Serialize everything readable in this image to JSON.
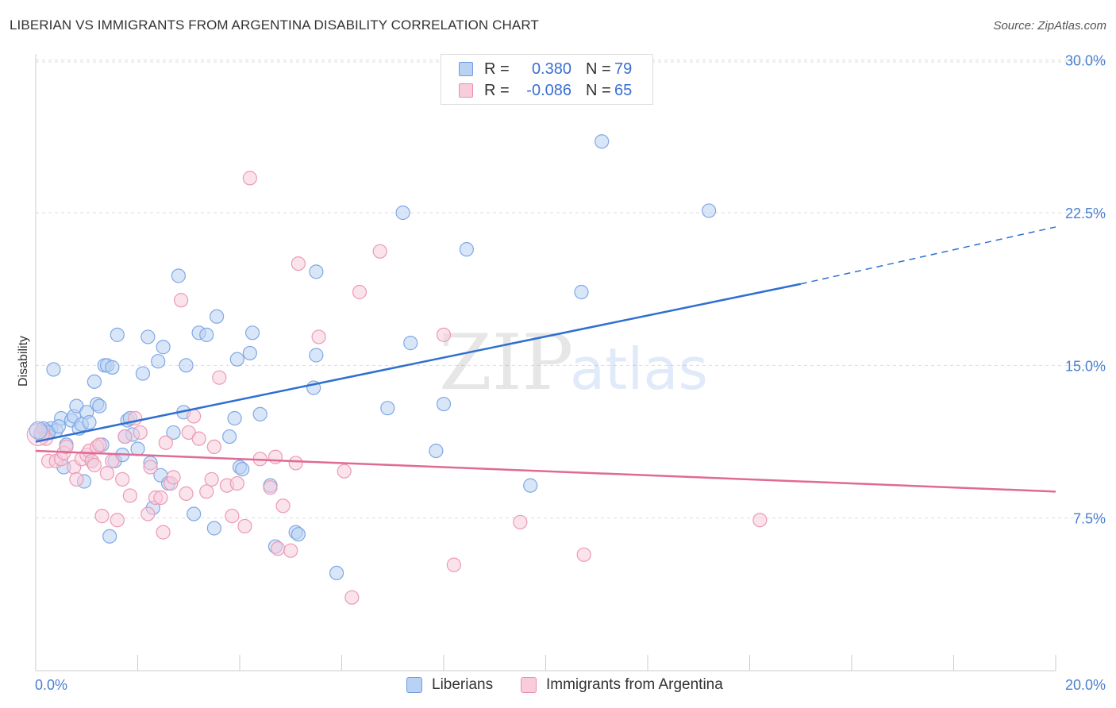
{
  "header": {
    "title": "LIBERIAN VS IMMIGRANTS FROM ARGENTINA DISABILITY CORRELATION CHART",
    "source": "Source: ZipAtlas.com"
  },
  "watermark": {
    "zip": "ZIP",
    "atlas": "atlas"
  },
  "legend": {
    "rows": [
      {
        "r_label": "R =",
        "r_value": "0.380",
        "n_label": "N =",
        "n_value": "79",
        "color": "#a9c8f0",
        "border": "#6f9de0"
      },
      {
        "r_label": "R =",
        "r_value": "-0.086",
        "n_label": "N =",
        "n_value": "65",
        "color": "#f6c3d3",
        "border": "#e890ad"
      }
    ]
  },
  "bottom_legend": {
    "items": [
      "Liberians",
      "Immigrants from Argentina"
    ]
  },
  "chart_data": {
    "type": "scatter",
    "title": "LIBERIAN VS IMMIGRANTS FROM ARGENTINA DISABILITY CORRELATION CHART",
    "xlabel": "",
    "ylabel": "Disability",
    "xlim": [
      0,
      20
    ],
    "ylim": [
      0,
      31
    ],
    "x_tick_labels": [
      "0.0%",
      "20.0%"
    ],
    "y_ticks": [
      7.5,
      15.0,
      22.5,
      30.0
    ],
    "y_tick_labels": [
      "7.5%",
      "15.0%",
      "22.5%",
      "30.0%"
    ],
    "grid": true,
    "legend_position": "top-center",
    "series": [
      {
        "name": "Liberians",
        "color": "#7fa8e6",
        "fill": "#b9d1f3",
        "trend": {
          "x0": 0,
          "y0": 11.25,
          "x1": 15.0,
          "y1": 19.0,
          "dash_to_x": 20.0,
          "dash_to_y": 21.8,
          "color": "#2f6fd0"
        },
        "points": [
          [
            0.1,
            11.6
          ],
          [
            0.2,
            11.8
          ],
          [
            0.3,
            11.9
          ],
          [
            0.4,
            11.8
          ],
          [
            0.35,
            14.8
          ],
          [
            0.5,
            12.4
          ],
          [
            0.55,
            10.0
          ],
          [
            0.6,
            11.1
          ],
          [
            0.7,
            12.3
          ],
          [
            0.75,
            12.5
          ],
          [
            0.8,
            13.0
          ],
          [
            0.85,
            11.9
          ],
          [
            0.9,
            12.1
          ],
          [
            0.95,
            9.3
          ],
          [
            1.0,
            12.7
          ],
          [
            1.05,
            12.2
          ],
          [
            1.1,
            10.3
          ],
          [
            1.15,
            14.2
          ],
          [
            1.2,
            13.1
          ],
          [
            1.25,
            13.0
          ],
          [
            1.3,
            11.1
          ],
          [
            1.35,
            15.0
          ],
          [
            1.4,
            15.0
          ],
          [
            1.45,
            6.6
          ],
          [
            1.5,
            14.9
          ],
          [
            1.55,
            10.3
          ],
          [
            1.6,
            16.5
          ],
          [
            1.7,
            10.6
          ],
          [
            1.75,
            11.5
          ],
          [
            1.8,
            12.3
          ],
          [
            1.85,
            12.4
          ],
          [
            1.9,
            11.6
          ],
          [
            2.0,
            10.9
          ],
          [
            2.1,
            14.6
          ],
          [
            2.2,
            16.4
          ],
          [
            2.25,
            10.2
          ],
          [
            2.3,
            8.0
          ],
          [
            2.4,
            15.2
          ],
          [
            2.45,
            9.6
          ],
          [
            2.5,
            15.9
          ],
          [
            2.6,
            9.2
          ],
          [
            2.7,
            11.7
          ],
          [
            2.8,
            19.4
          ],
          [
            2.9,
            12.7
          ],
          [
            2.95,
            15.0
          ],
          [
            3.1,
            7.7
          ],
          [
            3.2,
            16.6
          ],
          [
            3.35,
            16.5
          ],
          [
            3.5,
            7.0
          ],
          [
            3.55,
            17.4
          ],
          [
            3.8,
            11.5
          ],
          [
            3.9,
            12.4
          ],
          [
            3.95,
            15.3
          ],
          [
            4.0,
            10.0
          ],
          [
            4.05,
            9.9
          ],
          [
            4.2,
            15.6
          ],
          [
            4.25,
            16.6
          ],
          [
            4.4,
            12.6
          ],
          [
            4.6,
            9.1
          ],
          [
            4.7,
            6.1
          ],
          [
            5.1,
            6.8
          ],
          [
            5.15,
            6.7
          ],
          [
            5.5,
            19.6
          ],
          [
            5.5,
            15.5
          ],
          [
            5.45,
            13.9
          ],
          [
            5.9,
            4.8
          ],
          [
            6.9,
            12.9
          ],
          [
            7.2,
            22.5
          ],
          [
            7.35,
            16.1
          ],
          [
            7.85,
            10.8
          ],
          [
            8.0,
            13.1
          ],
          [
            8.45,
            20.7
          ],
          [
            9.7,
            9.1
          ],
          [
            10.7,
            18.6
          ],
          [
            11.1,
            26.0
          ],
          [
            13.2,
            22.6
          ],
          [
            0.15,
            11.9
          ],
          [
            0.25,
            11.7
          ],
          [
            0.45,
            12.0
          ]
        ]
      },
      {
        "name": "Immigrants from Argentina",
        "color": "#eb9ab6",
        "fill": "#f8ccda",
        "trend": {
          "x0": 0,
          "y0": 10.8,
          "x1": 20.0,
          "y1": 8.8,
          "color": "#e06a93"
        },
        "points": [
          [
            0.1,
            11.7
          ],
          [
            0.2,
            11.4
          ],
          [
            0.25,
            10.3
          ],
          [
            0.4,
            10.3
          ],
          [
            0.5,
            10.4
          ],
          [
            0.55,
            10.7
          ],
          [
            0.6,
            11.0
          ],
          [
            0.75,
            10.0
          ],
          [
            0.8,
            9.4
          ],
          [
            0.9,
            10.4
          ],
          [
            1.0,
            10.6
          ],
          [
            1.05,
            10.8
          ],
          [
            1.1,
            10.3
          ],
          [
            1.15,
            10.1
          ],
          [
            1.2,
            11.0
          ],
          [
            1.25,
            11.1
          ],
          [
            1.3,
            7.6
          ],
          [
            1.4,
            9.7
          ],
          [
            1.5,
            10.3
          ],
          [
            1.6,
            7.4
          ],
          [
            1.7,
            9.4
          ],
          [
            1.75,
            11.5
          ],
          [
            1.85,
            8.6
          ],
          [
            1.95,
            12.4
          ],
          [
            2.05,
            11.7
          ],
          [
            2.2,
            7.7
          ],
          [
            2.25,
            10.0
          ],
          [
            2.35,
            8.5
          ],
          [
            2.45,
            8.5
          ],
          [
            2.5,
            6.8
          ],
          [
            2.55,
            11.2
          ],
          [
            2.65,
            9.2
          ],
          [
            2.7,
            9.5
          ],
          [
            2.85,
            18.2
          ],
          [
            2.95,
            8.7
          ],
          [
            3.0,
            11.7
          ],
          [
            3.1,
            12.5
          ],
          [
            3.2,
            11.4
          ],
          [
            3.35,
            8.8
          ],
          [
            3.45,
            9.4
          ],
          [
            3.5,
            11.0
          ],
          [
            3.6,
            14.4
          ],
          [
            3.75,
            9.1
          ],
          [
            3.85,
            7.6
          ],
          [
            3.95,
            9.2
          ],
          [
            4.1,
            7.1
          ],
          [
            4.2,
            24.2
          ],
          [
            4.4,
            10.4
          ],
          [
            4.6,
            9.0
          ],
          [
            4.7,
            10.5
          ],
          [
            4.75,
            6.0
          ],
          [
            4.85,
            8.1
          ],
          [
            5.0,
            5.9
          ],
          [
            5.1,
            10.2
          ],
          [
            5.15,
            20.0
          ],
          [
            5.55,
            16.4
          ],
          [
            6.05,
            9.8
          ],
          [
            6.2,
            3.6
          ],
          [
            6.35,
            18.6
          ],
          [
            6.75,
            20.6
          ],
          [
            8.0,
            16.5
          ],
          [
            8.2,
            5.2
          ],
          [
            9.5,
            7.3
          ],
          [
            10.75,
            5.7
          ],
          [
            14.2,
            7.4
          ]
        ]
      }
    ]
  }
}
